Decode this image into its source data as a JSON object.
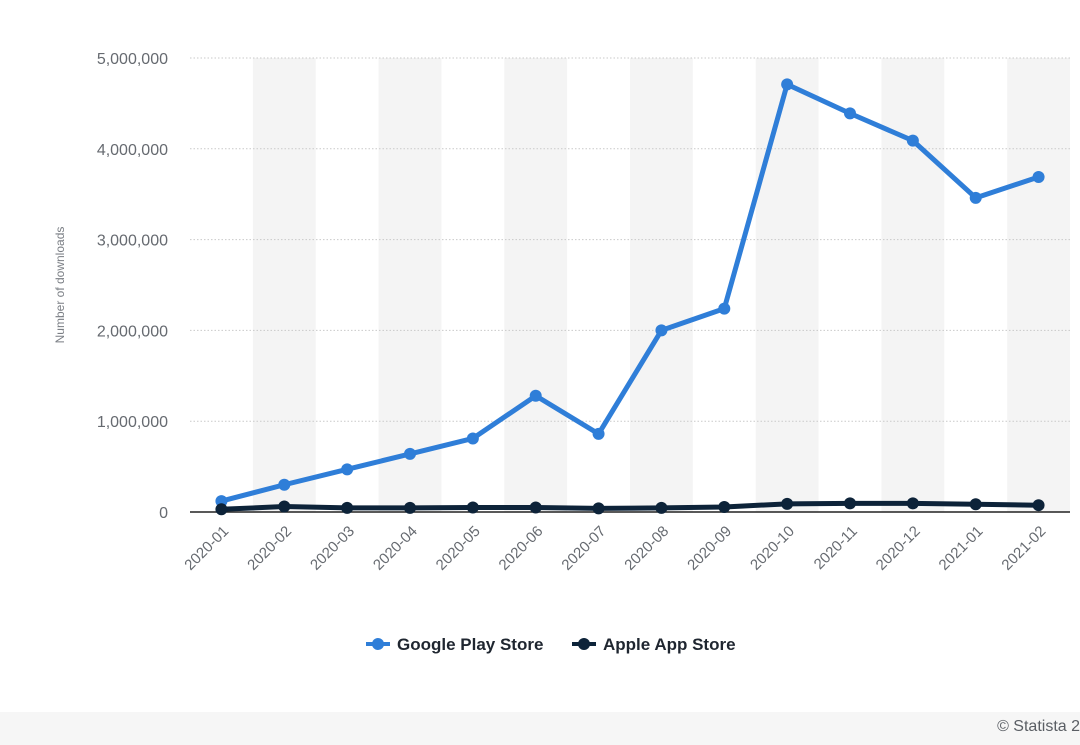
{
  "chart_data": {
    "type": "line",
    "title": "",
    "xlabel": "",
    "ylabel": "Number of downloads",
    "ylim": [
      0,
      5000000
    ],
    "yticks": [
      0,
      1000000,
      2000000,
      3000000,
      4000000,
      5000000
    ],
    "ytick_labels": [
      "0",
      "1,000,000",
      "2,000,000",
      "3,000,000",
      "4,000,000",
      "5,000,000"
    ],
    "grid": true,
    "legend_position": "bottom-center",
    "categories": [
      "2020-01",
      "2020-02",
      "2020-03",
      "2020-04",
      "2020-05",
      "2020-06",
      "2020-07",
      "2020-08",
      "2020-09",
      "2020-10",
      "2020-11",
      "2020-12",
      "2021-01",
      "2021-02"
    ],
    "series": [
      {
        "name": "Google Play Store",
        "color": "#2f7ed8",
        "values": [
          120000,
          300000,
          470000,
          640000,
          810000,
          1280000,
          860000,
          2000000,
          2240000,
          4710000,
          4390000,
          4090000,
          3460000,
          3690000
        ]
      },
      {
        "name": "Apple App Store",
        "color": "#0d2339",
        "values": [
          30000,
          60000,
          45000,
          45000,
          50000,
          50000,
          40000,
          45000,
          55000,
          90000,
          95000,
          95000,
          85000,
          75000
        ]
      }
    ]
  },
  "credit": "© Statista 2"
}
